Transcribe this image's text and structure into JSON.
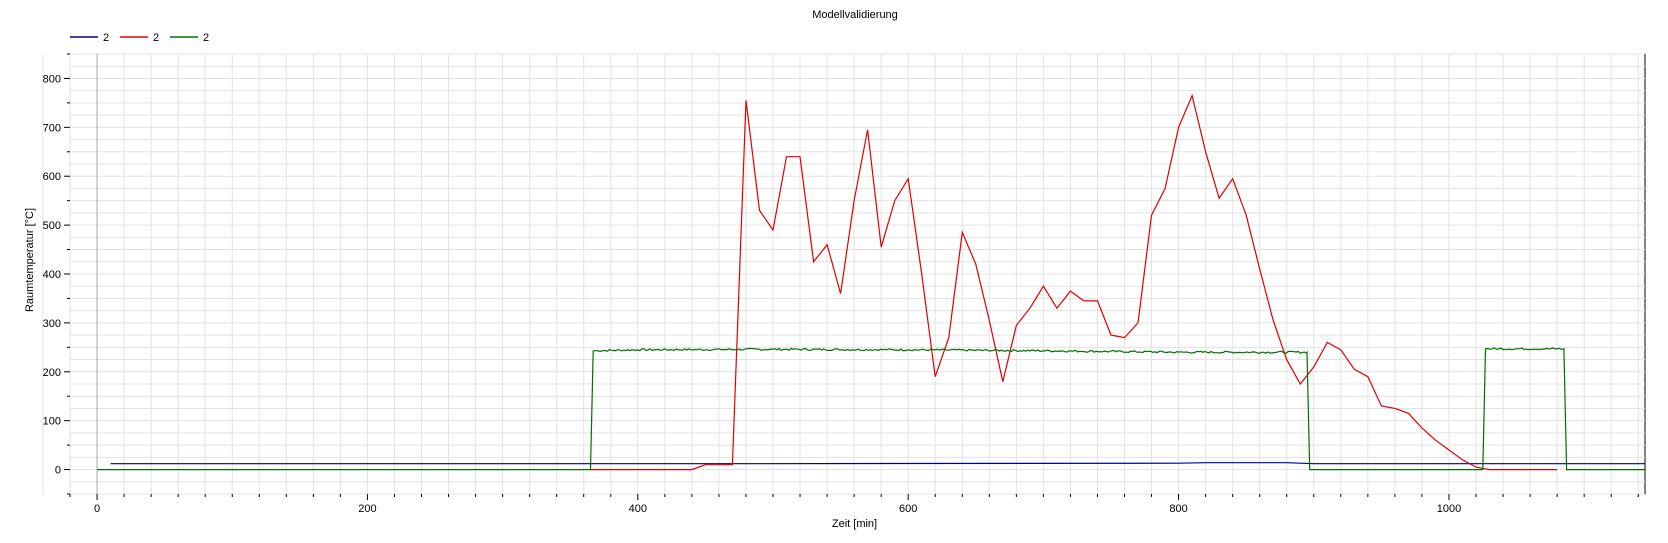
{
  "chart_data": {
    "type": "line",
    "title": "Modellvalidierung",
    "xlabel": "Zeit [min]",
    "ylabel": "Raumtemperatur [°C]",
    "xlim": [
      -20,
      1145
    ],
    "ylim": [
      -50,
      850
    ],
    "xticks": [
      0,
      200,
      400,
      600,
      800,
      1000
    ],
    "yticks": [
      0,
      100,
      200,
      300,
      400,
      500,
      600,
      700,
      800
    ],
    "grid": true,
    "legend_position": "top-left",
    "series": [
      {
        "name": "2",
        "color": "#00008b",
        "x": [
          10,
          470,
          800,
          820,
          880,
          900,
          1145
        ],
        "y": [
          12,
          12,
          13,
          14,
          14,
          12,
          12
        ]
      },
      {
        "name": "2",
        "color": "#e00000",
        "x": [
          365,
          440,
          450,
          470,
          480,
          490,
          500,
          510,
          520,
          530,
          540,
          550,
          560,
          570,
          580,
          590,
          600,
          610,
          620,
          630,
          640,
          650,
          660,
          670,
          680,
          690,
          700,
          710,
          720,
          730,
          740,
          750,
          760,
          770,
          780,
          790,
          800,
          810,
          820,
          830,
          840,
          850,
          860,
          870,
          880,
          890,
          900,
          910,
          920,
          930,
          940,
          950,
          960,
          970,
          980,
          990,
          1000,
          1010,
          1020,
          1030,
          1040,
          1080
        ],
        "y": [
          0,
          0,
          10,
          10,
          755,
          530,
          490,
          640,
          640,
          425,
          460,
          360,
          550,
          695,
          455,
          550,
          595,
          400,
          190,
          270,
          485,
          420,
          305,
          180,
          295,
          330,
          375,
          330,
          365,
          345,
          345,
          275,
          270,
          300,
          520,
          575,
          700,
          765,
          650,
          555,
          595,
          520,
          410,
          305,
          225,
          175,
          210,
          260,
          245,
          205,
          190,
          130,
          125,
          115,
          85,
          60,
          40,
          20,
          5,
          0,
          0,
          0
        ]
      },
      {
        "name": "2",
        "color": "#007000",
        "x": [
          0,
          365,
          367,
          400,
          500,
          600,
          700,
          800,
          895,
          897,
          1025,
          1027,
          1085,
          1087,
          1145
        ],
        "y": [
          0,
          0,
          243,
          245,
          246,
          245,
          243,
          240,
          240,
          0,
          0,
          247,
          247,
          0,
          0
        ],
        "noisy_ranges": [
          [
            367,
            895
          ],
          [
            1027,
            1085
          ]
        ]
      }
    ]
  }
}
